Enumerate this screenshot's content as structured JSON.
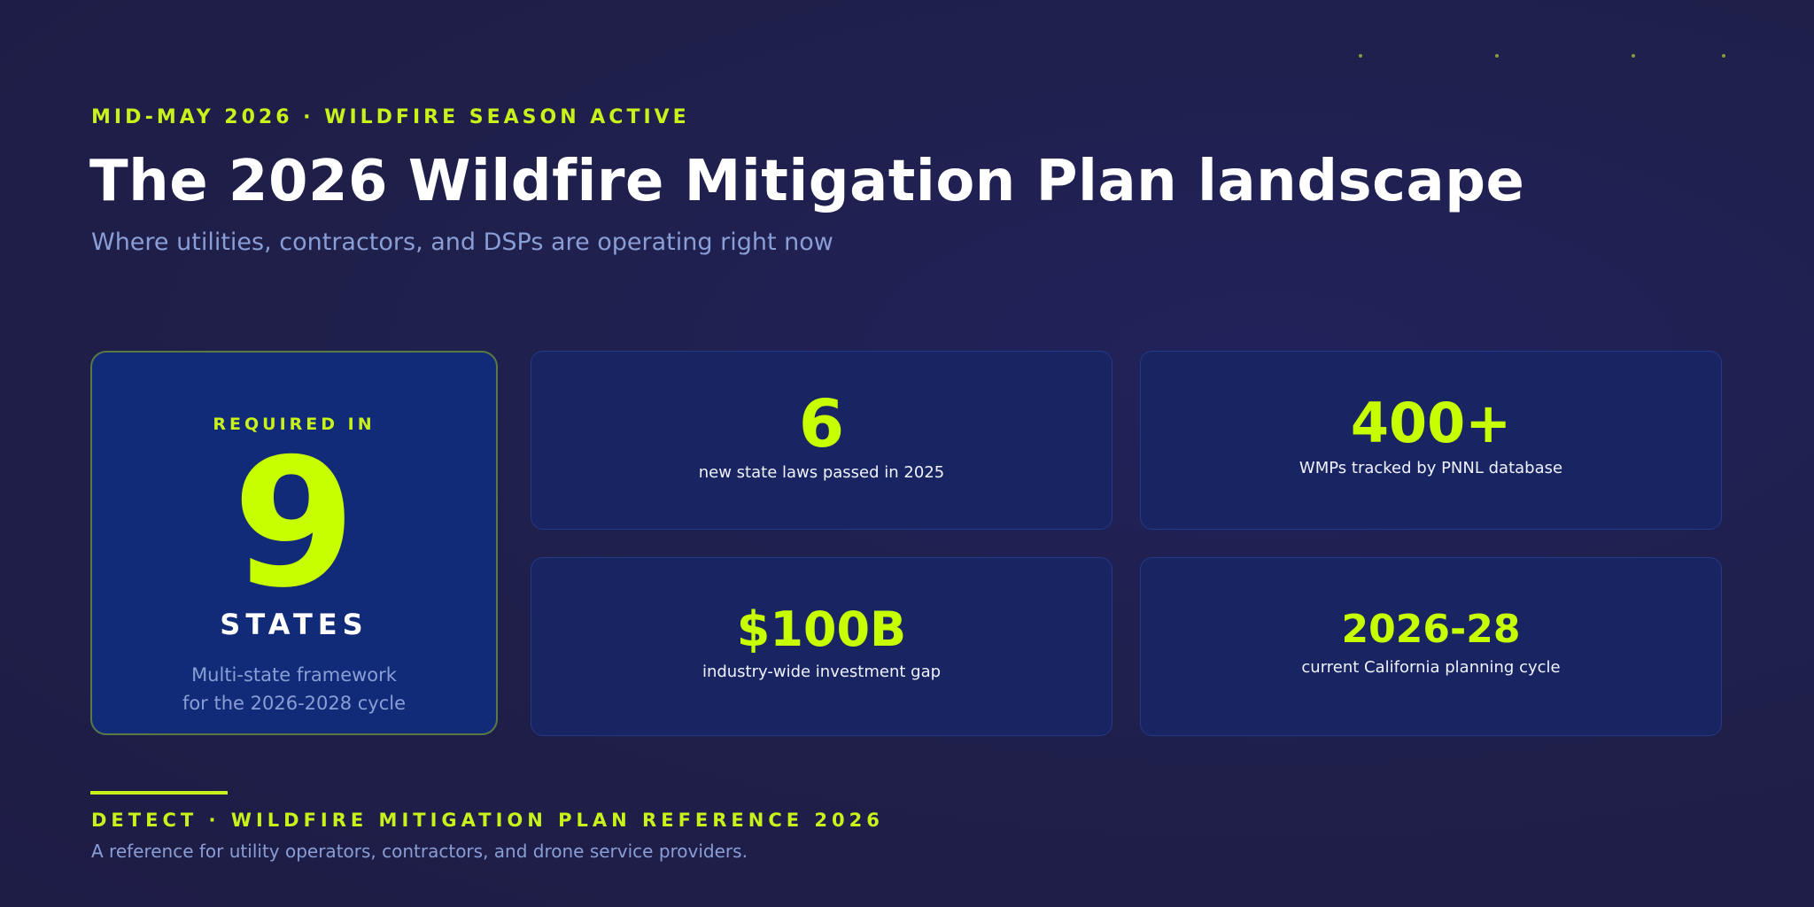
{
  "header": {
    "eyebrow": "MID-MAY 2026 · WILDFIRE SEASON ACTIVE",
    "title": "The 2026 Wildfire Mitigation Plan landscape",
    "subtitle": "Where utilities, contractors, and DSPs are operating right now"
  },
  "hero": {
    "eyebrow": "REQUIRED IN",
    "number": "9",
    "unit": "STATES",
    "description_line1": "Multi-state framework",
    "description_line2": "for the 2026-2028 cycle"
  },
  "stats": [
    {
      "value": "6",
      "label": "new state laws passed in 2025"
    },
    {
      "value": "400+",
      "label": "WMPs tracked by PNNL database"
    },
    {
      "value": "$100B",
      "label": "industry-wide investment gap"
    },
    {
      "value": "2026-28",
      "label": "current California planning cycle"
    }
  ],
  "footer": {
    "title": "DETECT · WILDFIRE MITIGATION PLAN REFERENCE 2026",
    "description": "A reference for utility operators, contractors, and drone service providers."
  },
  "colors": {
    "background": "#1f1f4a",
    "accent": "#c8ff00",
    "hero_card": "#112b78",
    "stat_card": "#182562",
    "muted_text": "#8a9ed6"
  }
}
